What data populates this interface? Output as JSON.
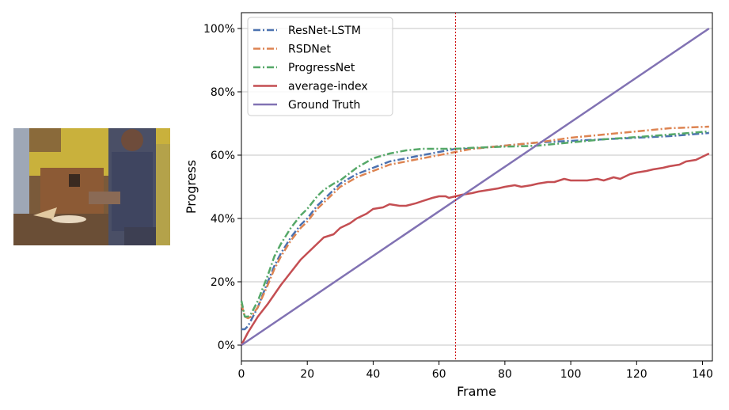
{
  "chart_data": {
    "type": "line",
    "xlabel": "Frame",
    "ylabel": "Progress",
    "xlim": [
      0,
      143
    ],
    "ylim": [
      -5,
      105
    ],
    "xticks": [
      0,
      20,
      40,
      60,
      80,
      100,
      120,
      140
    ],
    "xtick_labels": [
      "0",
      "20",
      "40",
      "60",
      "80",
      "100",
      "120",
      "140"
    ],
    "yticks": [
      0,
      20,
      40,
      60,
      80,
      100
    ],
    "ytick_labels": [
      "0%",
      "20%",
      "40%",
      "60%",
      "80%",
      "100%"
    ],
    "grid": "horizontal",
    "legend_position": "top-left",
    "marker_line_x": 65,
    "series": [
      {
        "name": "ResNet-LSTM",
        "color": "#4c72b0",
        "style": "dash-dot",
        "x": [
          0,
          1,
          2,
          3,
          5,
          8,
          10,
          12,
          15,
          18,
          20,
          23,
          25,
          28,
          30,
          35,
          40,
          45,
          50,
          55,
          60,
          65,
          70,
          75,
          80,
          85,
          90,
          100,
          110,
          120,
          130,
          142
        ],
        "y": [
          5,
          5,
          6,
          8,
          12,
          20,
          25,
          29,
          34,
          38,
          40,
          44,
          46,
          49,
          51,
          54,
          56,
          58,
          59,
          60,
          61,
          62,
          62,
          62.5,
          63,
          63.5,
          64,
          64.5,
          65,
          65.5,
          66,
          67
        ]
      },
      {
        "name": "RSDNet",
        "color": "#dd8452",
        "style": "dash-dot",
        "x": [
          0,
          1,
          2,
          3,
          5,
          8,
          10,
          12,
          15,
          18,
          20,
          23,
          25,
          28,
          30,
          35,
          40,
          45,
          50,
          55,
          60,
          65,
          70,
          75,
          80,
          85,
          90,
          100,
          110,
          120,
          130,
          142
        ],
        "y": [
          13,
          9,
          8.5,
          9,
          12,
          19,
          24,
          28,
          33,
          37,
          39,
          43,
          45,
          48,
          50,
          53,
          55,
          57,
          58,
          59,
          60,
          61,
          62,
          62.5,
          63,
          63.5,
          64,
          65.5,
          66.5,
          67.5,
          68.5,
          69
        ]
      },
      {
        "name": "ProgressNet",
        "color": "#55a868",
        "style": "dash-dot",
        "x": [
          0,
          1,
          2,
          3,
          5,
          8,
          10,
          12,
          15,
          18,
          20,
          23,
          25,
          28,
          30,
          35,
          40,
          45,
          50,
          55,
          60,
          65,
          70,
          75,
          80,
          85,
          90,
          100,
          110,
          120,
          130,
          142
        ],
        "y": [
          14,
          9,
          9,
          10,
          14,
          22,
          28,
          32,
          37,
          41,
          43,
          47,
          49,
          51,
          52,
          56,
          59,
          60.5,
          61.5,
          62,
          62,
          62,
          62.3,
          62.5,
          62.7,
          62.8,
          63,
          64,
          65,
          65.7,
          66.5,
          67.5
        ]
      },
      {
        "name": "average-index",
        "color": "#c44e52",
        "style": "solid",
        "x": [
          0,
          2,
          5,
          8,
          10,
          12,
          15,
          18,
          20,
          23,
          25,
          28,
          30,
          33,
          35,
          38,
          40,
          43,
          45,
          48,
          50,
          53,
          55,
          58,
          60,
          62,
          63,
          65,
          67,
          70,
          72,
          75,
          78,
          80,
          83,
          85,
          88,
          90,
          93,
          95,
          98,
          100,
          103,
          105,
          108,
          110,
          113,
          115,
          118,
          120,
          123,
          125,
          128,
          130,
          133,
          135,
          138,
          140,
          142
        ],
        "y": [
          0,
          4,
          9,
          13,
          16,
          19,
          23,
          27,
          29,
          32,
          34,
          35,
          37,
          38.5,
          40,
          41.5,
          43,
          43.5,
          44.5,
          44,
          44,
          44.8,
          45.5,
          46.5,
          47,
          47,
          46.5,
          47,
          47.5,
          48,
          48.5,
          49,
          49.5,
          50,
          50.5,
          50,
          50.5,
          51,
          51.5,
          51.5,
          52.5,
          52,
          52,
          52,
          52.5,
          52,
          53,
          52.5,
          54,
          54.5,
          55,
          55.5,
          56,
          56.5,
          57,
          58,
          58.5,
          59.5,
          60.5
        ]
      },
      {
        "name": "Ground Truth",
        "color": "#8172b3",
        "style": "solid",
        "x": [
          0,
          142
        ],
        "y": [
          0,
          100
        ]
      }
    ]
  }
}
